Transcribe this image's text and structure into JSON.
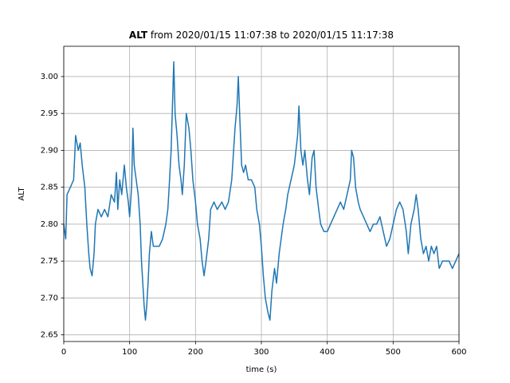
{
  "chart_data": {
    "type": "line",
    "title": [
      "ALT",
      "from 2020/01/15 11:07:38 to 2020/01/15 11:17:38"
    ],
    "xlabel": "time (s)",
    "ylabel": "ALT",
    "color": "#1f77b4",
    "grid": true,
    "xlim": [
      0,
      600
    ],
    "xticks": [
      0,
      100,
      200,
      300,
      400,
      500,
      600
    ],
    "ylim": [
      2.641,
      3.041
    ],
    "yticks": [
      2.65,
      {
        "value": 2.7,
        "label": "2.70"
      },
      2.75,
      {
        "value": 2.8,
        "label": "2.80"
      },
      2.85,
      {
        "value": 2.9,
        "label": "2.90"
      },
      2.95,
      {
        "value": 3,
        "label": "3.00"
      }
    ],
    "x": [
      0,
      3,
      5,
      10,
      15,
      18,
      22,
      25,
      28,
      32,
      35,
      38,
      40,
      43,
      46,
      48,
      52,
      57,
      62,
      67,
      72,
      77,
      80,
      82,
      85,
      88,
      92,
      95,
      98,
      100,
      103,
      105,
      107,
      110,
      113,
      116,
      118,
      120,
      122,
      124,
      126,
      128,
      130,
      133,
      136,
      140,
      145,
      150,
      155,
      158,
      160,
      163,
      165,
      167,
      169,
      172,
      175,
      178,
      180,
      183,
      186,
      190,
      193,
      196,
      200,
      203,
      207,
      210,
      213,
      216,
      220,
      223,
      228,
      233,
      240,
      245,
      250,
      255,
      260,
      263,
      265,
      267,
      270,
      273,
      276,
      280,
      285,
      290,
      293,
      297,
      300,
      303,
      306,
      310,
      313,
      316,
      320,
      323,
      327,
      330,
      333,
      337,
      340,
      345,
      350,
      355,
      357,
      360,
      363,
      366,
      370,
      373,
      377,
      380,
      383,
      387,
      390,
      395,
      400,
      405,
      410,
      415,
      420,
      425,
      430,
      435,
      437,
      440,
      443,
      447,
      450,
      455,
      460,
      465,
      470,
      475,
      480,
      485,
      490,
      495,
      500,
      505,
      510,
      515,
      520,
      523,
      527,
      532,
      535,
      538,
      542,
      546,
      550,
      554,
      558,
      562,
      566,
      570,
      575,
      580,
      585,
      590,
      595,
      600
    ],
    "values": [
      2.8,
      2.78,
      2.84,
      2.85,
      2.86,
      2.92,
      2.9,
      2.91,
      2.88,
      2.85,
      2.8,
      2.76,
      2.74,
      2.73,
      2.76,
      2.8,
      2.82,
      2.81,
      2.82,
      2.81,
      2.84,
      2.83,
      2.87,
      2.82,
      2.86,
      2.84,
      2.88,
      2.85,
      2.83,
      2.81,
      2.85,
      2.93,
      2.88,
      2.86,
      2.84,
      2.8,
      2.75,
      2.72,
      2.69,
      2.67,
      2.69,
      2.72,
      2.76,
      2.79,
      2.77,
      2.77,
      2.77,
      2.78,
      2.8,
      2.82,
      2.85,
      2.9,
      2.96,
      3.02,
      2.95,
      2.92,
      2.88,
      2.86,
      2.84,
      2.88,
      2.95,
      2.93,
      2.9,
      2.86,
      2.83,
      2.8,
      2.78,
      2.75,
      2.73,
      2.75,
      2.78,
      2.82,
      2.83,
      2.82,
      2.83,
      2.82,
      2.83,
      2.86,
      2.93,
      2.96,
      3.0,
      2.95,
      2.88,
      2.87,
      2.88,
      2.86,
      2.86,
      2.85,
      2.82,
      2.8,
      2.77,
      2.73,
      2.7,
      2.68,
      2.67,
      2.71,
      2.74,
      2.72,
      2.76,
      2.78,
      2.8,
      2.82,
      2.84,
      2.86,
      2.88,
      2.92,
      2.96,
      2.9,
      2.88,
      2.9,
      2.86,
      2.84,
      2.89,
      2.9,
      2.85,
      2.82,
      2.8,
      2.79,
      2.79,
      2.8,
      2.81,
      2.82,
      2.83,
      2.82,
      2.84,
      2.86,
      2.9,
      2.89,
      2.85,
      2.83,
      2.82,
      2.81,
      2.8,
      2.79,
      2.8,
      2.8,
      2.81,
      2.79,
      2.77,
      2.78,
      2.8,
      2.82,
      2.83,
      2.82,
      2.79,
      2.76,
      2.8,
      2.82,
      2.84,
      2.82,
      2.78,
      2.76,
      2.77,
      2.75,
      2.77,
      2.76,
      2.77,
      2.74,
      2.75,
      2.75,
      2.75,
      2.74,
      2.75,
      2.76
    ]
  }
}
